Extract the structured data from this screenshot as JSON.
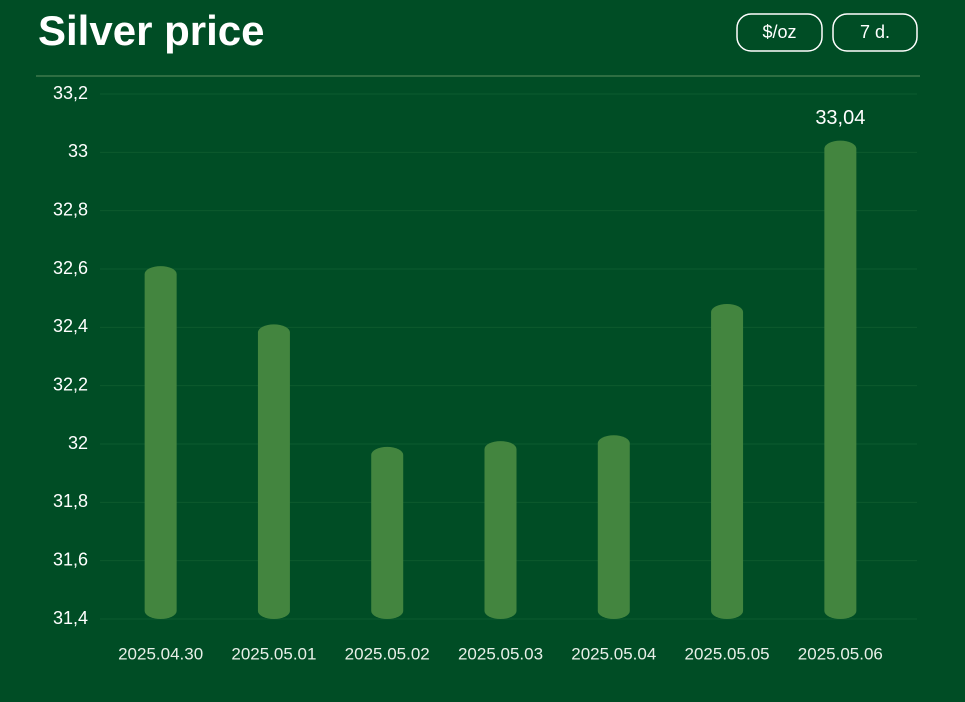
{
  "chart_data": {
    "type": "bar",
    "title": "Silver price",
    "buttons": [
      "$/oz",
      "7 d."
    ],
    "categories": [
      "2025.04.30",
      "2025.05.01",
      "2025.05.02",
      "2025.05.03",
      "2025.05.04",
      "2025.05.05",
      "2025.05.06"
    ],
    "values": [
      32.61,
      32.41,
      31.99,
      32.01,
      32.03,
      32.48,
      33.04
    ],
    "value_labels": [
      null,
      null,
      null,
      null,
      null,
      null,
      "33,04"
    ],
    "color": "#43853f",
    "ylim": [
      31.4,
      33.2
    ],
    "yticks": [
      {
        "value": 31.4,
        "label": "31,4"
      },
      {
        "value": 31.6,
        "label": "31,6"
      },
      {
        "value": 31.8,
        "label": "31,8"
      },
      32,
      {
        "value": 32.2,
        "label": "32,2"
      },
      {
        "value": 32.4,
        "label": "32,4"
      },
      {
        "value": 32.6,
        "label": "32,6"
      },
      {
        "value": 32.8,
        "label": "32,8"
      },
      33,
      {
        "value": 33.2,
        "label": "33,2"
      }
    ],
    "grid": true
  }
}
